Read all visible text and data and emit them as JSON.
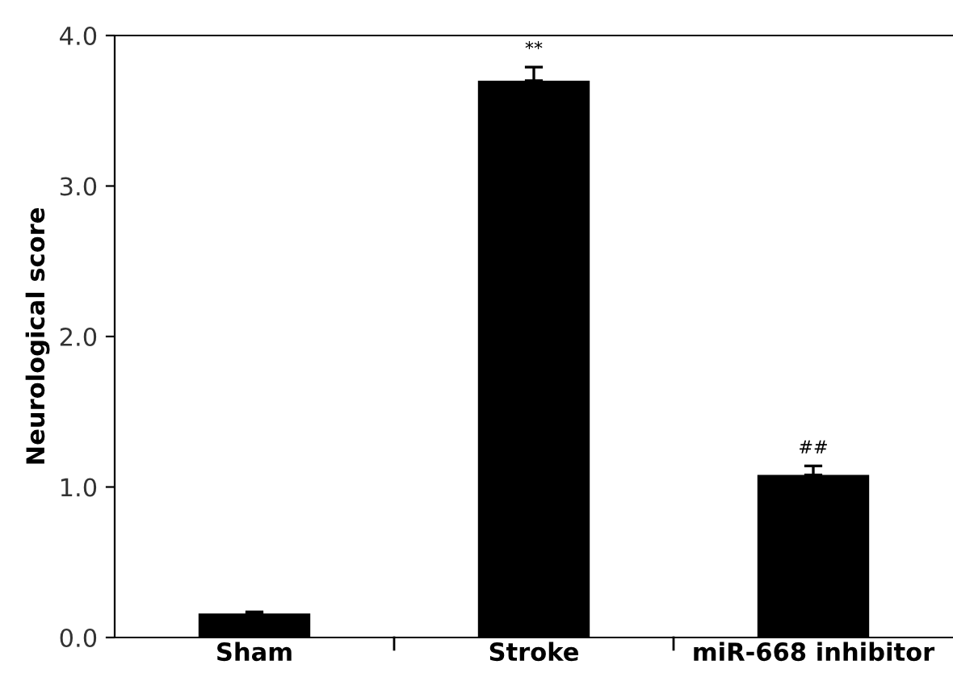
{
  "chart_data": {
    "type": "bar",
    "ylabel": "Neurological score",
    "categories": [
      "Sham",
      "Stroke",
      "miR-668 inhibitor"
    ],
    "values": [
      0.16,
      3.7,
      1.08
    ],
    "errors": [
      0.01,
      0.09,
      0.06
    ],
    "color": "#000000",
    "ylim": [
      0,
      4
    ],
    "yticks": [
      {
        "value": 0,
        "label": "0.0"
      },
      {
        "value": 1,
        "label": "1.0"
      },
      {
        "value": 2,
        "label": "2.0"
      },
      {
        "value": 3,
        "label": "3.0"
      },
      {
        "value": 4,
        "label": "4.0"
      }
    ],
    "grid": false,
    "legend": false,
    "annotations": [
      {
        "text": "**",
        "x": "Stroke",
        "y": 3.79
      },
      {
        "text": "##",
        "x": "miR-668 inhibitor",
        "y": 1.14
      }
    ]
  }
}
